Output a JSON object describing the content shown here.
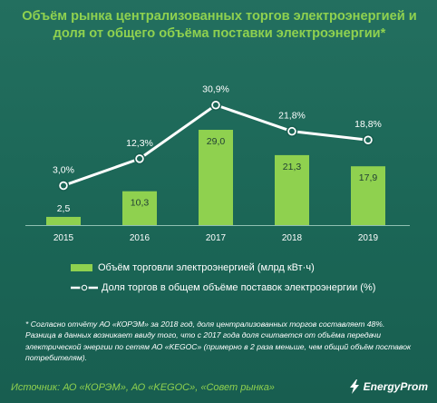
{
  "title": "Объём рынка централизованных торгов электроэнергией и доля от общего объёма поставки электроэнергии*",
  "chart_data": {
    "type": "bar",
    "categories": [
      "2015",
      "2016",
      "2017",
      "2018",
      "2019"
    ],
    "series": [
      {
        "name": "Объём торговли электроэнергией (млрд кВт·ч)",
        "type": "bar",
        "values": [
          2.5,
          10.3,
          29.0,
          21.3,
          17.9
        ],
        "labels": [
          "2,5",
          "10,3",
          "29,0",
          "21,3",
          "17,9"
        ],
        "color": "#8fd14f"
      },
      {
        "name": "Доля торгов в общем объёме поставок электроэнергии (%)",
        "type": "line",
        "values": [
          3.0,
          12.3,
          30.9,
          21.8,
          18.8
        ],
        "labels": [
          "3,0%",
          "12,3%",
          "30,9%",
          "21,8%",
          "18,8%"
        ],
        "color": "#ffffff"
      }
    ],
    "grid": false,
    "legend": "bottom"
  },
  "footnote": "* Согласно отчёту АО «КОРЭМ» за 2018 год, доля централизованных торгов составляет 48%. Разница в данных возникает ввиду того, что с 2017 года доля считается от объёма передачи электрической энергии по сетям АО «KEGOC» (примерно в 2 раза меньше, чем общий объём поставок потребителям).",
  "source": "Источник: АО «КОРЭМ», АО «KEGOC», «Совет рынка»",
  "brand": "EnergyProm"
}
